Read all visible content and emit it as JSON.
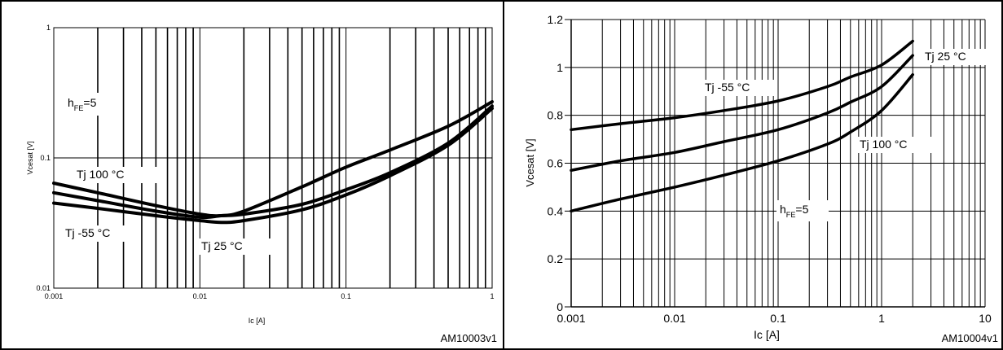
{
  "chart_data": [
    {
      "type": "line",
      "xscale": "log",
      "yscale": "log",
      "xlim": [
        0.001,
        1
      ],
      "ylim": [
        0.01,
        1
      ],
      "xlabel": "Ic [A]",
      "ylabel": "Vcesat [V]",
      "x_ticks": [
        "0.001",
        "0.01",
        "0.1",
        "1"
      ],
      "y_ticks": [
        "0.01",
        "0.1",
        "1"
      ],
      "grid": true,
      "condition_label": "h_FE=5",
      "series": [
        {
          "name": "Tj 100 °C",
          "x": [
            0.001,
            0.002,
            0.005,
            0.01,
            0.014,
            0.02,
            0.05,
            0.1,
            0.2,
            0.5,
            1
          ],
          "y": [
            0.064,
            0.054,
            0.043,
            0.037,
            0.036,
            0.039,
            0.06,
            0.085,
            0.115,
            0.175,
            0.27
          ]
        },
        {
          "name": "Tj 25 °C",
          "x": [
            0.001,
            0.002,
            0.005,
            0.01,
            0.014,
            0.02,
            0.05,
            0.1,
            0.2,
            0.5,
            1
          ],
          "y": [
            0.054,
            0.047,
            0.039,
            0.035,
            0.036,
            0.037,
            0.044,
            0.057,
            0.077,
            0.13,
            0.25
          ]
        },
        {
          "name": "Tj -55 °C",
          "x": [
            0.001,
            0.002,
            0.005,
            0.01,
            0.014,
            0.02,
            0.05,
            0.1,
            0.2,
            0.5,
            1
          ],
          "y": [
            0.045,
            0.041,
            0.036,
            0.033,
            0.032,
            0.033,
            0.04,
            0.052,
            0.073,
            0.125,
            0.24
          ]
        }
      ],
      "series_labels": [
        "Tj 100 °C",
        "Tj -55 °C",
        "Tj 25 °C"
      ],
      "figure_id": "AM10003v1"
    },
    {
      "type": "line",
      "xscale": "log",
      "yscale": "linear",
      "xlim": [
        0.001,
        10
      ],
      "ylim": [
        0,
        1.2
      ],
      "xlabel": "Ic [A]",
      "ylabel": "Vcesat [V]",
      "x_ticks": [
        "0.001",
        "0.01",
        "0.1",
        "1",
        "10"
      ],
      "y_ticks": [
        "0",
        "0.2",
        "0.4",
        "0.6",
        "0.8",
        "1",
        "1.2"
      ],
      "grid": true,
      "condition_label": "h_FE=5",
      "series": [
        {
          "name": "Tj -55 °C",
          "x": [
            0.001,
            0.003,
            0.01,
            0.03,
            0.1,
            0.3,
            0.5,
            1,
            2
          ],
          "y": [
            0.74,
            0.765,
            0.79,
            0.82,
            0.86,
            0.92,
            0.96,
            1.01,
            1.11
          ]
        },
        {
          "name": "Tj 25 °C",
          "x": [
            0.001,
            0.003,
            0.01,
            0.03,
            0.1,
            0.3,
            0.5,
            1,
            2
          ],
          "y": [
            0.57,
            0.61,
            0.645,
            0.69,
            0.74,
            0.81,
            0.855,
            0.92,
            1.05
          ]
        },
        {
          "name": "Tj 100 °C",
          "x": [
            0.001,
            0.003,
            0.01,
            0.03,
            0.1,
            0.3,
            0.5,
            1,
            2
          ],
          "y": [
            0.4,
            0.45,
            0.5,
            0.55,
            0.61,
            0.68,
            0.73,
            0.82,
            0.97
          ]
        }
      ],
      "series_labels": [
        "Tj -55 °C",
        "Tj 25 °C",
        "Tj 100 °C"
      ],
      "figure_id": "AM10004v1"
    }
  ]
}
